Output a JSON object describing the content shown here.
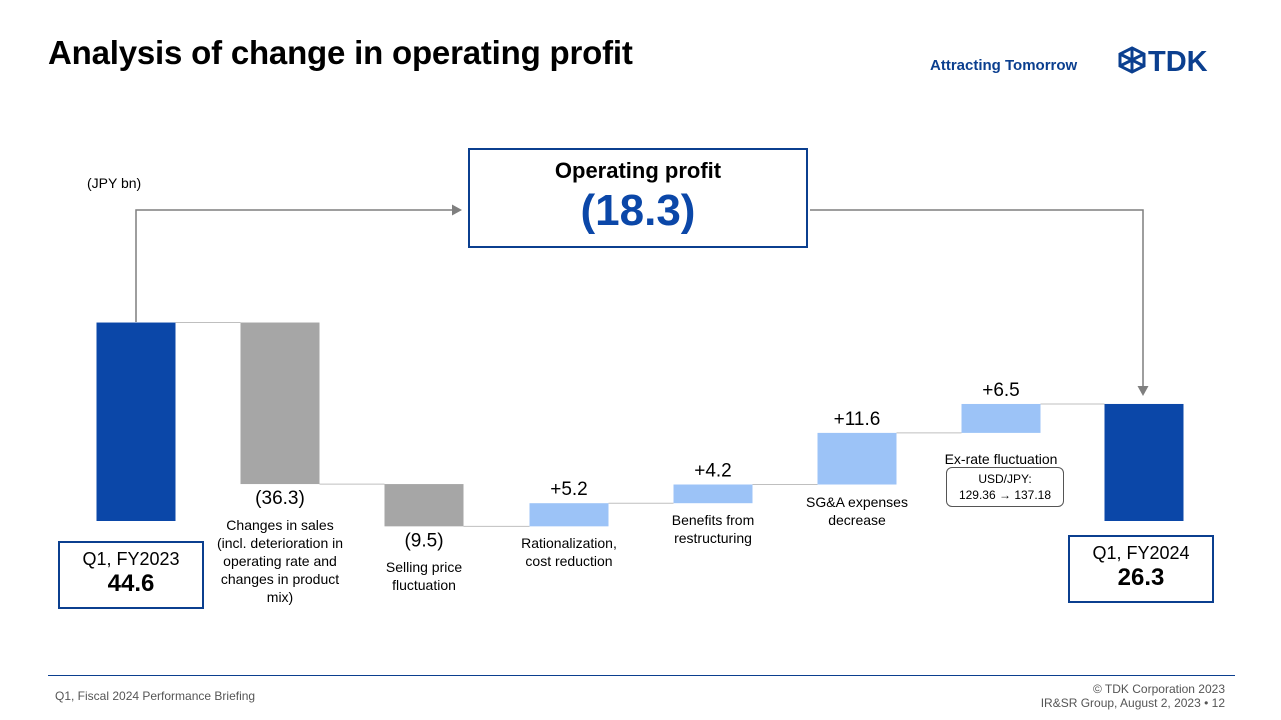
{
  "header": {
    "title": "Analysis of change in operating profit",
    "tagline": "Attracting Tomorrow",
    "logo_text": "TDK"
  },
  "unit": "(JPY bn)",
  "summary": {
    "label": "Operating profit",
    "value": "(18.3)"
  },
  "start": {
    "label": "Q1, FY2023",
    "value": "44.6"
  },
  "end": {
    "label": "Q1, FY2024",
    "value": "26.3"
  },
  "exrate": {
    "pair": "USD/JPY:",
    "change": "129.36 → 137.18"
  },
  "colors": {
    "total": "#0b47a8",
    "decrease": "#a6a6a6",
    "increase": "#9cc3f7",
    "accent": "#0b3f8f"
  },
  "chart_data": {
    "type": "bar",
    "subtype": "waterfall",
    "categories": [
      "Q1, FY2023",
      "Changes in sales (incl. deterioration in operating rate and changes in product mix)",
      "Selling price fluctuation",
      "Rationalization, cost reduction",
      "Benefits from restructuring",
      "SG&A expenses decrease",
      "Ex-rate fluctuation",
      "Q1, FY2024"
    ],
    "category_lines": [
      [],
      [
        "Changes in sales",
        "(incl. deterioration in",
        "operating rate and",
        "changes in product",
        "mix)"
      ],
      [
        "Selling price",
        "fluctuation"
      ],
      [
        "Rationalization,",
        "cost reduction"
      ],
      [
        "Benefits from",
        "restructuring"
      ],
      [
        "SG&A expenses",
        "decrease"
      ],
      [
        "Ex-rate fluctuation"
      ],
      []
    ],
    "values": [
      44.6,
      -36.3,
      -9.5,
      5.2,
      4.2,
      11.6,
      6.5,
      26.3
    ],
    "kinds": [
      "total",
      "decrease",
      "decrease",
      "increase",
      "increase",
      "increase",
      "increase",
      "total"
    ],
    "data_labels": [
      "44.6",
      "(36.3)",
      "(9.5)",
      "+5.2",
      "+4.2",
      "+11.6",
      "+6.5",
      "26.3"
    ],
    "unit": "(JPY bn)"
  },
  "footer": {
    "left": "Q1, Fiscal 2024 Performance  Briefing",
    "copyright": "© TDK Corporation 2023",
    "group": "IR&SR Group, August 2, 2023 • 12"
  }
}
